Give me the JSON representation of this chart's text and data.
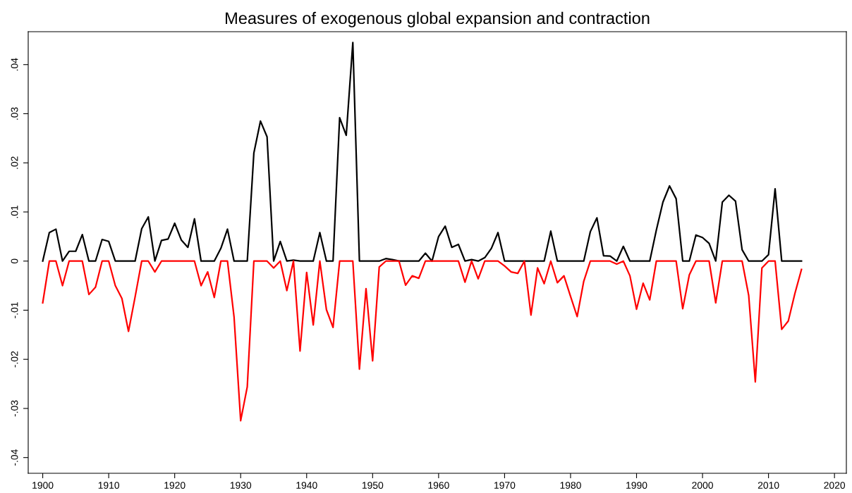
{
  "chart_data": {
    "type": "line",
    "title": "Measures of exogenous global expansion and contraction",
    "x": [
      1900,
      1901,
      1902,
      1903,
      1904,
      1905,
      1906,
      1907,
      1908,
      1909,
      1910,
      1911,
      1912,
      1913,
      1914,
      1915,
      1916,
      1917,
      1918,
      1919,
      1920,
      1921,
      1922,
      1923,
      1924,
      1925,
      1926,
      1927,
      1928,
      1929,
      1930,
      1931,
      1932,
      1933,
      1934,
      1935,
      1936,
      1937,
      1938,
      1939,
      1940,
      1941,
      1942,
      1943,
      1944,
      1945,
      1946,
      1947,
      1948,
      1949,
      1950,
      1951,
      1952,
      1953,
      1954,
      1955,
      1956,
      1957,
      1958,
      1959,
      1960,
      1961,
      1962,
      1963,
      1964,
      1965,
      1966,
      1967,
      1968,
      1969,
      1970,
      1971,
      1972,
      1973,
      1974,
      1975,
      1976,
      1977,
      1978,
      1979,
      1980,
      1981,
      1982,
      1983,
      1984,
      1985,
      1986,
      1987,
      1988,
      1989,
      1990,
      1991,
      1992,
      1993,
      1994,
      1995,
      1996,
      1997,
      1998,
      1999,
      2000,
      2001,
      2002,
      2003,
      2004,
      2005,
      2006,
      2007,
      2008,
      2009,
      2010,
      2011,
      2012,
      2013,
      2014,
      2015
    ],
    "series": [
      {
        "color": "#000000",
        "values": [
          0,
          0.0058,
          0.0065,
          0,
          0.002,
          0.002,
          0.0054,
          0,
          0,
          0.0044,
          0.004,
          0,
          0,
          0,
          0,
          0.0066,
          0.009,
          0,
          0.0042,
          0.0045,
          0.0077,
          0.0043,
          0.0028,
          0.0086,
          0,
          0,
          0,
          0.0026,
          0.0065,
          0,
          0,
          0,
          0.022,
          0.0285,
          0.0253,
          0,
          0.004,
          0,
          0.0002,
          0,
          0,
          0,
          0.0058,
          0,
          0,
          0.0292,
          0.0256,
          0.0445,
          0,
          0,
          0,
          0,
          0.0005,
          0.0003,
          0,
          0,
          0,
          0,
          0.0016,
          0,
          0.005,
          0.0071,
          0.0028,
          0.0034,
          0,
          0.0003,
          0,
          0.0007,
          0.0026,
          0.0058,
          0,
          0,
          0,
          0,
          0,
          0,
          0,
          0.0061,
          0,
          0,
          0,
          0,
          0,
          0.006,
          0.0088,
          0.0011,
          0.001,
          0,
          0.003,
          0,
          0,
          0,
          0,
          0.0063,
          0.012,
          0.0153,
          0.0127,
          0,
          0,
          0.0053,
          0.0048,
          0.0036,
          0,
          0.012,
          0.0134,
          0.0122,
          0.0023,
          0,
          0,
          0,
          0.0013,
          0.0147,
          0,
          0,
          0,
          0
        ]
      },
      {
        "color": "#ff0000",
        "values": [
          -0.0085,
          0,
          0,
          -0.005,
          0,
          0,
          0,
          -0.0068,
          -0.0053,
          0,
          0,
          -0.005,
          -0.0076,
          -0.0143,
          -0.0073,
          0,
          0,
          -0.0022,
          0,
          0,
          0,
          0,
          0,
          0,
          -0.005,
          -0.0022,
          -0.0074,
          0,
          0,
          -0.0114,
          -0.0325,
          -0.0256,
          0,
          0,
          0,
          -0.0014,
          0,
          -0.006,
          0,
          -0.0183,
          -0.0023,
          -0.013,
          0,
          -0.0099,
          -0.0135,
          0,
          0,
          0,
          -0.022,
          -0.0056,
          -0.0203,
          -0.0012,
          0,
          0,
          0,
          -0.0049,
          -0.003,
          -0.0035,
          0,
          0,
          0,
          0,
          0,
          0,
          -0.0043,
          0,
          -0.0036,
          0,
          0,
          0,
          -0.001,
          -0.0022,
          -0.0025,
          0,
          -0.011,
          -0.0014,
          -0.0046,
          0,
          -0.0044,
          -0.003,
          -0.0072,
          -0.0113,
          -0.0041,
          0,
          0,
          0,
          0,
          -0.0006,
          0,
          -0.003,
          -0.0098,
          -0.0045,
          -0.0079,
          0,
          0,
          0,
          0,
          -0.0097,
          -0.0028,
          0,
          0,
          0,
          -0.0085,
          0,
          0,
          0,
          0,
          -0.007,
          -0.0246,
          -0.0014,
          0,
          0,
          -0.0139,
          -0.0122,
          -0.0066,
          -0.0017
        ]
      }
    ],
    "xlim": [
      1897.8,
      2021.8
    ],
    "ylim": [
      -0.0432,
      0.0467
    ],
    "xticks": [
      1900,
      1910,
      1920,
      1930,
      1940,
      1950,
      1960,
      1970,
      1980,
      1990,
      2000,
      2010,
      2020
    ],
    "yticks": [
      {
        "value": -0.04,
        "label": "-.04"
      },
      {
        "value": -0.03,
        "label": "-.03"
      },
      {
        "value": -0.02,
        "label": "-.02"
      },
      {
        "value": -0.01,
        "label": "-.01"
      },
      {
        "value": 0,
        "label": "0"
      },
      {
        "value": 0.01,
        "label": ".01"
      },
      {
        "value": 0.02,
        "label": ".02"
      },
      {
        "value": 0.03,
        "label": ".03"
      },
      {
        "value": 0.04,
        "label": ".04"
      }
    ],
    "grid": false
  }
}
